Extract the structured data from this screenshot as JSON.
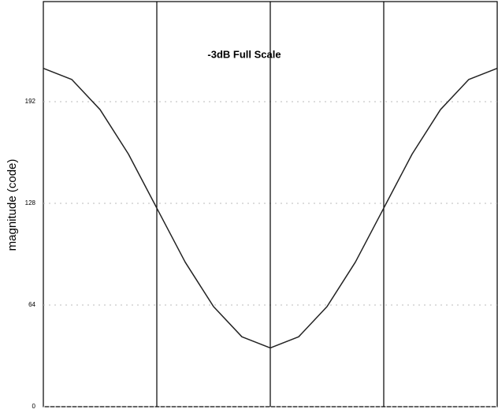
{
  "chart_data": {
    "type": "line",
    "title": "-3dB Full Scale",
    "y_label": "magnitude (code)",
    "x": [
      0,
      0.25,
      0.5,
      0.75,
      1,
      1.25,
      1.5,
      1.75,
      2,
      2.25,
      2.5,
      2.75,
      3,
      3.25,
      3.5,
      3.75,
      4
    ],
    "values": [
      213,
      206,
      187,
      159,
      125,
      91,
      63,
      44,
      37,
      44,
      63,
      91,
      125,
      159,
      187,
      206,
      213
    ],
    "color": "#222222",
    "xlim": [
      0,
      4
    ],
    "xgrid": [
      1,
      2,
      3
    ],
    "ylim": [
      0,
      255
    ],
    "yticks": [
      0,
      64,
      128,
      192
    ],
    "grid": true
  }
}
